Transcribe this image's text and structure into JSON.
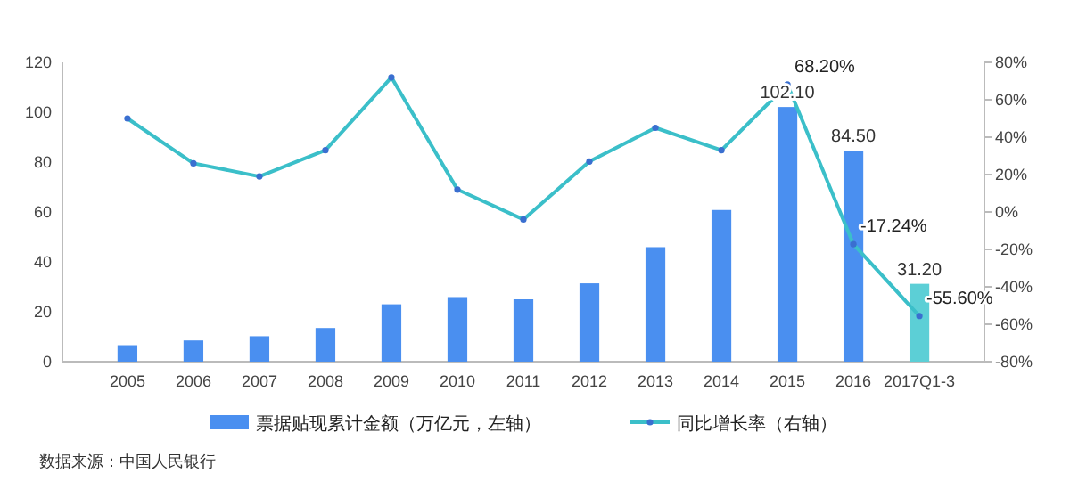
{
  "chart_data": {
    "type": "bar",
    "categories": [
      "2005",
      "2006",
      "2007",
      "2008",
      "2009",
      "2010",
      "2011",
      "2012",
      "2013",
      "2014",
      "2015",
      "2016",
      "2017Q1-3"
    ],
    "series": [
      {
        "name": "票据贴现累计金额（万亿元，左轴）",
        "color": "#4a8ff0",
        "colors": [
          "#4a8ff0",
          "#4a8ff0",
          "#4a8ff0",
          "#4a8ff0",
          "#4a8ff0",
          "#4a8ff0",
          "#4a8ff0",
          "#4a8ff0",
          "#4a8ff0",
          "#4a8ff0",
          "#4a8ff0",
          "#4a8ff0",
          "#5ccfd6"
        ],
        "values": [
          6.6,
          8.5,
          10.2,
          13.5,
          23,
          25.9,
          25,
          31.4,
          45.9,
          60.8,
          102.1,
          84.5,
          31.2
        ],
        "value_labels": [
          null,
          null,
          null,
          null,
          null,
          null,
          null,
          null,
          null,
          null,
          "102.10",
          "84.50",
          "31.20"
        ]
      },
      {
        "name": "同比增长率（右轴）",
        "type": "line",
        "axis": "y2",
        "color": "#3bbfc9",
        "marker": "circle",
        "values": [
          50,
          26,
          19,
          33,
          72,
          12,
          -4,
          27,
          45,
          33,
          68.2,
          -17.24,
          -55.6
        ],
        "value_labels": [
          null,
          null,
          null,
          null,
          null,
          null,
          null,
          null,
          null,
          null,
          "68.20%",
          "-17.24%",
          "-55.60%"
        ]
      }
    ],
    "ylim": [
      0,
      120
    ],
    "yticks": [
      0,
      20,
      40,
      60,
      80,
      100,
      120
    ],
    "y2lim": [
      -80,
      80
    ],
    "y2ticks": [
      {
        "value": -80,
        "label": "-80%"
      },
      {
        "value": -60,
        "label": "-60%"
      },
      {
        "value": -40,
        "label": "-40%"
      },
      {
        "value": -20,
        "label": "-20%"
      },
      {
        "value": 0,
        "label": "0%"
      },
      {
        "value": 20,
        "label": "20%"
      },
      {
        "value": 40,
        "label": "40%"
      },
      {
        "value": 60,
        "label": "60%"
      },
      {
        "value": 80,
        "label": "80%"
      }
    ],
    "grid": false,
    "legend": "bottom",
    "annotations": [
      "数据来源：中国人民银行"
    ]
  }
}
